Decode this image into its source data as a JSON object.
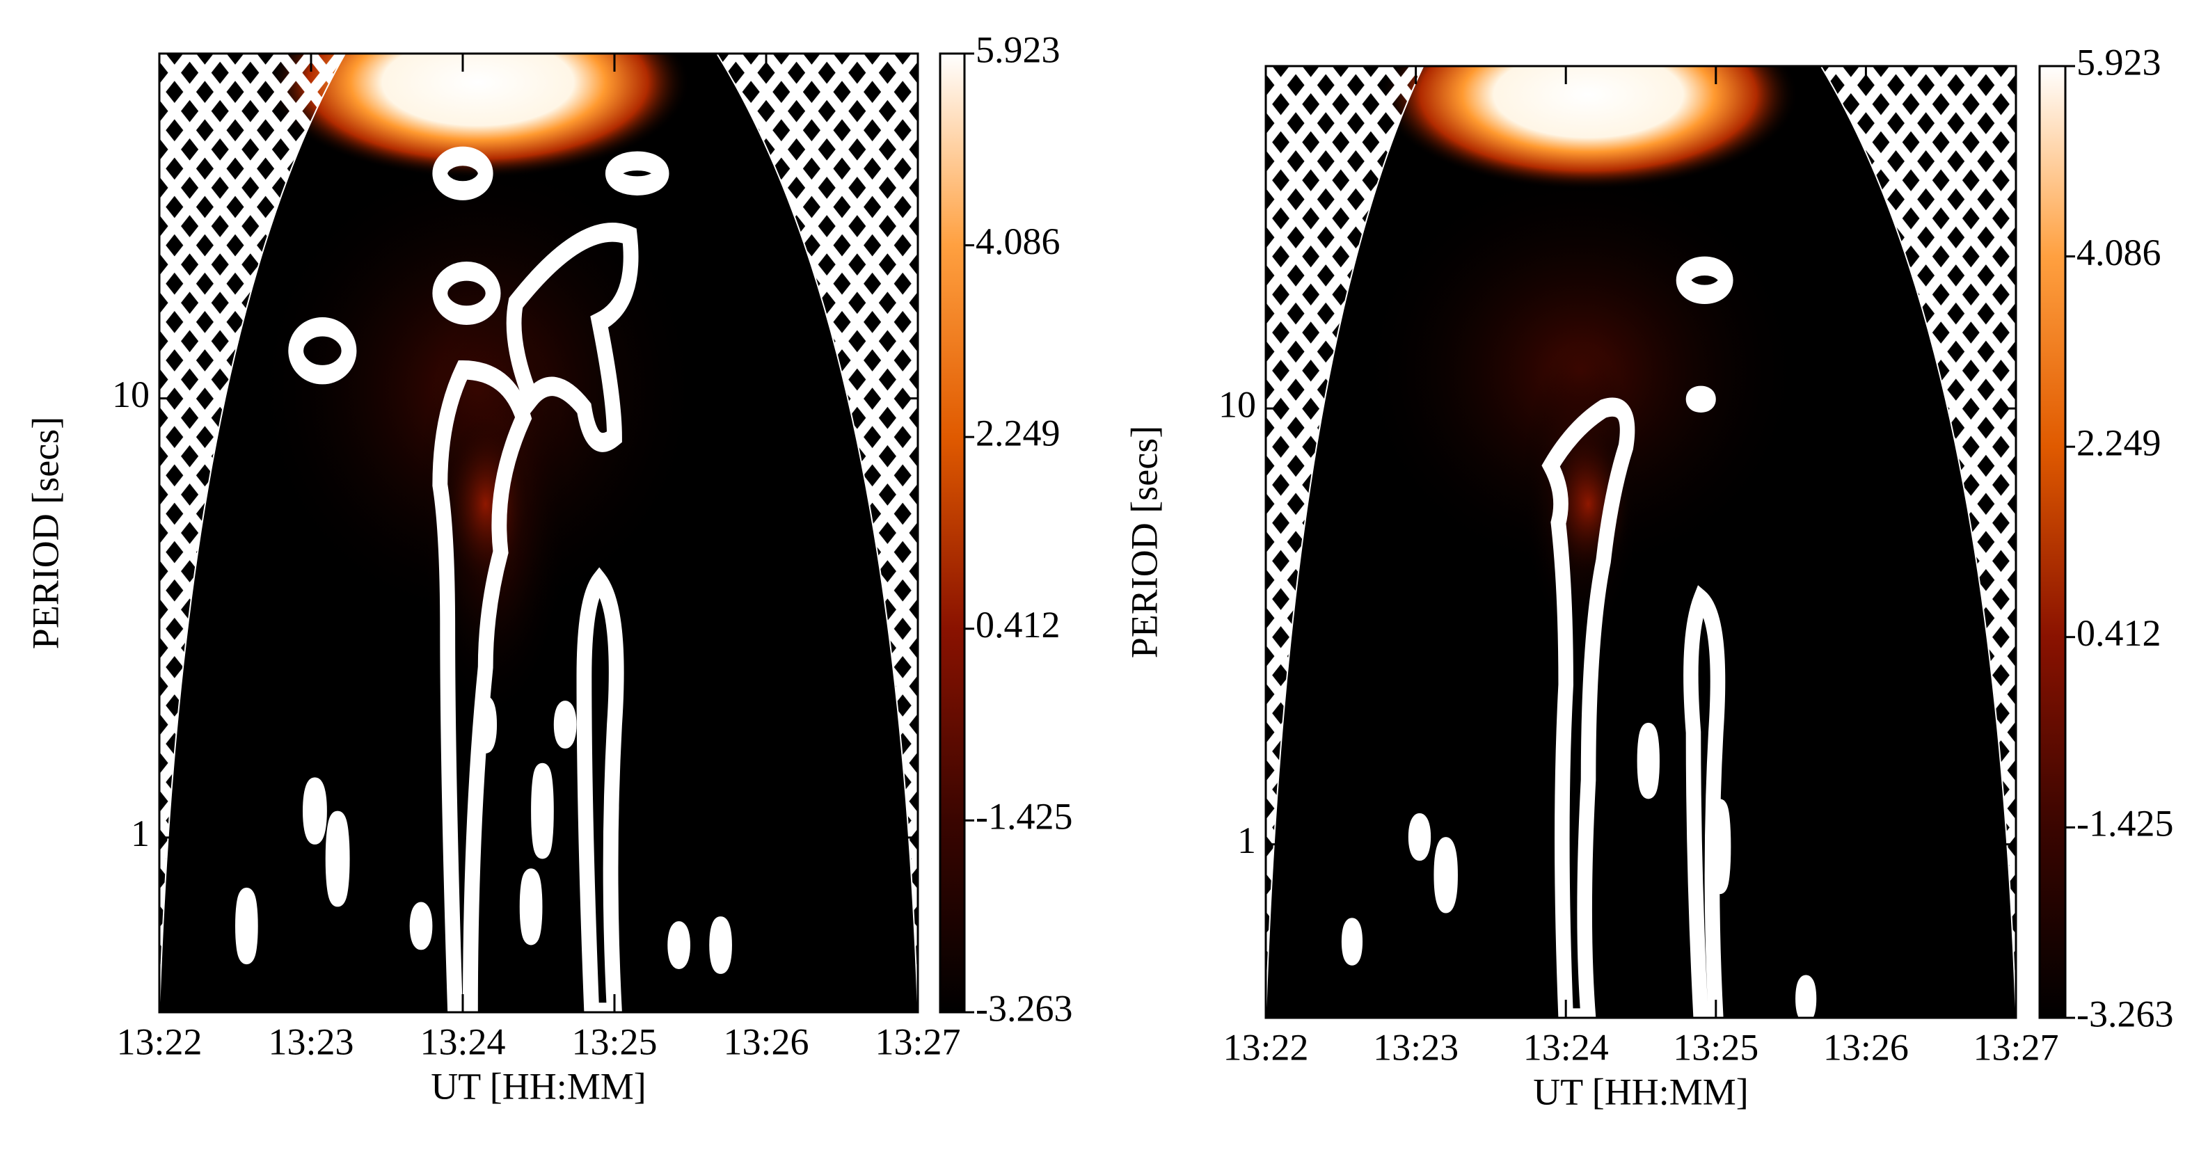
{
  "chart_data": [
    {
      "type": "heatmap",
      "xlabel": "UT [HH:MM]",
      "ylabel": "PERIOD [secs]",
      "xlim": [
        "13:22",
        "13:27"
      ],
      "xticks": [
        "13:22",
        "13:23",
        "13:24",
        "13:25",
        "13:26",
        "13:27"
      ],
      "ylim": [
        0.4,
        61
      ],
      "yticks": [
        1,
        10
      ],
      "log_y": true,
      "colorbar_lim": [
        -3.263,
        5.923
      ],
      "colorbar_ticks": [
        5.923,
        4.086,
        2.249,
        0.412,
        -1.425,
        -3.263
      ],
      "colormap": [
        "#000000",
        "#3a0500",
        "#8a1200",
        "#e05a00",
        "#ffa040",
        "#ffffff"
      ]
    },
    {
      "type": "heatmap",
      "xlabel": "UT [HH:MM]",
      "ylabel": "PERIOD [secs]",
      "xlim": [
        "13:22",
        "13:27"
      ],
      "xticks": [
        "13:22",
        "13:23",
        "13:24",
        "13:25",
        "13:26",
        "13:27"
      ],
      "ylim": [
        0.4,
        61
      ],
      "yticks": [
        1,
        10
      ],
      "log_y": true,
      "colorbar_lim": [
        -3.263,
        5.923
      ],
      "colorbar_ticks": [
        5.923,
        4.086,
        2.249,
        0.412,
        -1.425,
        -3.263
      ],
      "colormap": [
        "#000000",
        "#3a0500",
        "#8a1200",
        "#e05a00",
        "#ffa040",
        "#ffffff"
      ]
    }
  ]
}
